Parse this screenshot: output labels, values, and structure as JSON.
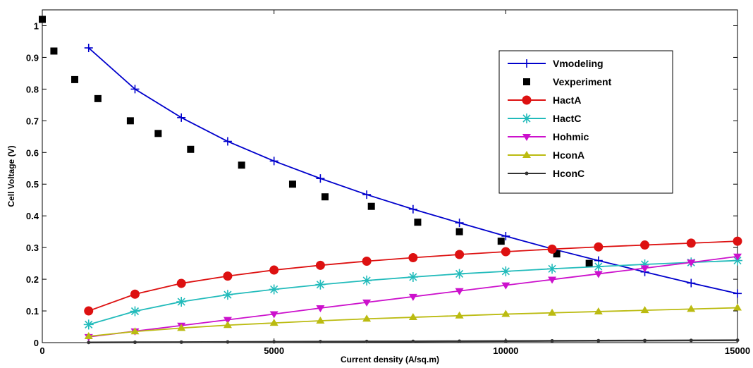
{
  "chart_data": {
    "type": "line",
    "title": "",
    "xlabel": "Current density (A/sq.m)",
    "ylabel": "Cell Voltage (V)",
    "xlim": [
      0,
      15000
    ],
    "ylim": [
      0,
      1.05
    ],
    "grid": false,
    "legend_position": "top-right",
    "x_ticks": [
      0,
      5000,
      10000,
      15000
    ],
    "x_tick_labels": [
      "0",
      "5000",
      "10000",
      "15000"
    ],
    "y_ticks": [
      0,
      0.1,
      0.2,
      0.3,
      0.4,
      0.5,
      0.6,
      0.7,
      0.8,
      0.9,
      1
    ],
    "y_tick_labels": [
      "0",
      "0.1",
      "0.2",
      "0.3",
      "0.4",
      "0.5",
      "0.6",
      "0.7",
      "0.8",
      "0.9",
      "1"
    ],
    "series": [
      {
        "name": "Vmodeling",
        "color": "#0000cc",
        "marker": "plus",
        "line": true,
        "x": [
          1000,
          2000,
          3000,
          4000,
          5000,
          6000,
          7000,
          8000,
          9000,
          10000,
          11000,
          12000,
          13000,
          14000,
          15000
        ],
        "y": [
          0.93,
          0.8,
          0.71,
          0.635,
          0.573,
          0.518,
          0.467,
          0.421,
          0.378,
          0.336,
          0.296,
          0.259,
          0.223,
          0.188,
          0.155
        ]
      },
      {
        "name": "Vexperiment",
        "color": "#000000",
        "marker": "square",
        "line": false,
        "x": [
          0,
          250,
          700,
          1200,
          1900,
          2500,
          3200,
          4300,
          5400,
          6100,
          7100,
          8100,
          9000,
          9900,
          11100,
          11800
        ],
        "y": [
          1.02,
          0.92,
          0.83,
          0.77,
          0.7,
          0.66,
          0.61,
          0.56,
          0.5,
          0.46,
          0.43,
          0.38,
          0.35,
          0.32,
          0.28,
          0.25
        ]
      },
      {
        "name": "HactA",
        "color": "#dd1111",
        "marker": "circle",
        "line": true,
        "x": [
          1000,
          2000,
          3000,
          4000,
          5000,
          6000,
          7000,
          8000,
          9000,
          10000,
          11000,
          12000,
          13000,
          14000,
          15000
        ],
        "y": [
          0.1,
          0.153,
          0.187,
          0.21,
          0.229,
          0.244,
          0.257,
          0.268,
          0.278,
          0.287,
          0.295,
          0.302,
          0.308,
          0.314,
          0.32
        ]
      },
      {
        "name": "HactC",
        "color": "#22bbbb",
        "marker": "asterisk",
        "line": true,
        "x": [
          1000,
          2000,
          3000,
          4000,
          5000,
          6000,
          7000,
          8000,
          9000,
          10000,
          11000,
          12000,
          13000,
          14000,
          15000
        ],
        "y": [
          0.057,
          0.099,
          0.129,
          0.151,
          0.168,
          0.183,
          0.196,
          0.207,
          0.217,
          0.225,
          0.233,
          0.24,
          0.247,
          0.253,
          0.259
        ]
      },
      {
        "name": "Hohmic",
        "color": "#cc11cc",
        "marker": "triangle-down",
        "line": true,
        "x": [
          1000,
          2000,
          3000,
          4000,
          5000,
          6000,
          7000,
          8000,
          9000,
          10000,
          11000,
          12000,
          13000,
          14000,
          15000
        ],
        "y": [
          0.018,
          0.036,
          0.054,
          0.072,
          0.09,
          0.109,
          0.127,
          0.145,
          0.163,
          0.181,
          0.199,
          0.217,
          0.235,
          0.253,
          0.272
        ]
      },
      {
        "name": "HconA",
        "color": "#bbbb11",
        "marker": "triangle-up",
        "line": true,
        "x": [
          1000,
          2000,
          3000,
          4000,
          5000,
          6000,
          7000,
          8000,
          9000,
          10000,
          11000,
          12000,
          13000,
          14000,
          15000
        ],
        "y": [
          0.02,
          0.035,
          0.046,
          0.055,
          0.062,
          0.069,
          0.075,
          0.08,
          0.085,
          0.09,
          0.094,
          0.098,
          0.102,
          0.106,
          0.11
        ]
      },
      {
        "name": "HconC",
        "color": "#333333",
        "marker": "dot",
        "line": true,
        "x": [
          1000,
          2000,
          3000,
          4000,
          5000,
          6000,
          7000,
          8000,
          9000,
          10000,
          11000,
          12000,
          13000,
          14000,
          15000
        ],
        "y": [
          0.0005,
          0.001,
          0.0015,
          0.002,
          0.0025,
          0.003,
          0.0035,
          0.004,
          0.0045,
          0.005,
          0.0055,
          0.006,
          0.0065,
          0.007,
          0.0075
        ]
      }
    ]
  }
}
